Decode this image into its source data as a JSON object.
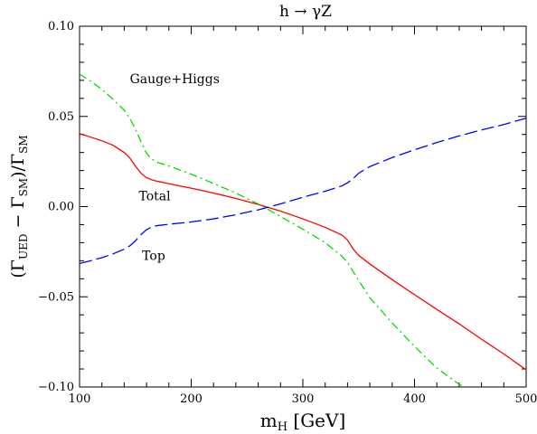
{
  "chart_data": {
    "type": "line",
    "title": "h → γZ",
    "xlabel": "m_H [GeV]",
    "ylabel": "(Γ_UED − Γ_SM)/Γ_SM",
    "xlim": [
      100,
      500
    ],
    "ylim": [
      -0.1,
      0.1
    ],
    "x_ticks": [
      {
        "value": 100,
        "label": "100"
      },
      {
        "value": 200,
        "label": "200"
      },
      {
        "value": 300,
        "label": "300"
      },
      {
        "value": 400,
        "label": "400"
      },
      {
        "value": 500,
        "label": "500"
      }
    ],
    "y_ticks": [
      {
        "value": -0.1,
        "label": "−0.10"
      },
      {
        "value": -0.05,
        "label": "−0.05"
      },
      {
        "value": 0.0,
        "label": "0.00"
      },
      {
        "value": 0.05,
        "label": "0.05"
      },
      {
        "value": 0.1,
        "label": "0.10"
      }
    ],
    "series": [
      {
        "name": "Total",
        "color": "#ff0000",
        "dash": "solid",
        "x": [
          100,
          110,
          120,
          130,
          140,
          145,
          150,
          155,
          160,
          165,
          170,
          180,
          190,
          200,
          220,
          240,
          260,
          280,
          300,
          320,
          335,
          340,
          345,
          350,
          360,
          380,
          400,
          420,
          440,
          460,
          480,
          500
        ],
        "y": [
          0.0405,
          0.0385,
          0.0365,
          0.034,
          0.03,
          0.027,
          0.0225,
          0.0185,
          0.016,
          0.0148,
          0.014,
          0.0127,
          0.0114,
          0.0102,
          0.0075,
          0.0045,
          0.0012,
          -0.0025,
          -0.0068,
          -0.0115,
          -0.0158,
          -0.0185,
          -0.0235,
          -0.027,
          -0.0318,
          -0.0405,
          -0.0488,
          -0.057,
          -0.065,
          -0.0735,
          -0.0817,
          -0.0905
        ]
      },
      {
        "name": "Gauge+Higgs",
        "color": "#00dd00",
        "dash": "dashdot",
        "x": [
          100,
          110,
          120,
          130,
          140,
          145,
          150,
          155,
          160,
          165,
          170,
          180,
          200,
          220,
          240,
          260,
          280,
          300,
          320,
          335,
          340,
          345,
          350,
          360,
          380,
          400,
          420,
          440,
          445
        ],
        "y": [
          0.0735,
          0.0695,
          0.065,
          0.0595,
          0.0535,
          0.049,
          0.043,
          0.036,
          0.0295,
          0.0262,
          0.0245,
          0.0225,
          0.018,
          0.0128,
          0.0075,
          0.0015,
          -0.0055,
          -0.0125,
          -0.02,
          -0.0275,
          -0.031,
          -0.036,
          -0.041,
          -0.0505,
          -0.0645,
          -0.0775,
          -0.0895,
          -0.0985,
          -0.1
        ]
      },
      {
        "name": "Top",
        "color": "#0000ff",
        "dash": "longdash",
        "x": [
          100,
          110,
          120,
          130,
          140,
          145,
          150,
          155,
          160,
          165,
          170,
          180,
          200,
          220,
          240,
          260,
          280,
          300,
          320,
          335,
          340,
          345,
          350,
          360,
          380,
          400,
          420,
          440,
          460,
          480,
          500
        ],
        "y": [
          -0.0315,
          -0.03,
          -0.0283,
          -0.0262,
          -0.0236,
          -0.0218,
          -0.019,
          -0.0155,
          -0.0128,
          -0.0112,
          -0.0105,
          -0.0098,
          -0.0085,
          -0.0068,
          -0.0045,
          -0.0018,
          0.0015,
          0.0052,
          0.0085,
          0.0115,
          0.0132,
          0.0155,
          0.0185,
          0.0222,
          0.0272,
          0.0315,
          0.0355,
          0.0392,
          0.0425,
          0.0455,
          0.049
        ]
      }
    ],
    "annotations": [
      {
        "text": "Gauge+Higgs",
        "x": 145,
        "y": 0.0685
      },
      {
        "text": "Total",
        "x": 153,
        "y": 0.0035
      },
      {
        "text": "Top",
        "x": 156,
        "y": -0.0295
      }
    ],
    "grid": false,
    "legend": "none"
  }
}
